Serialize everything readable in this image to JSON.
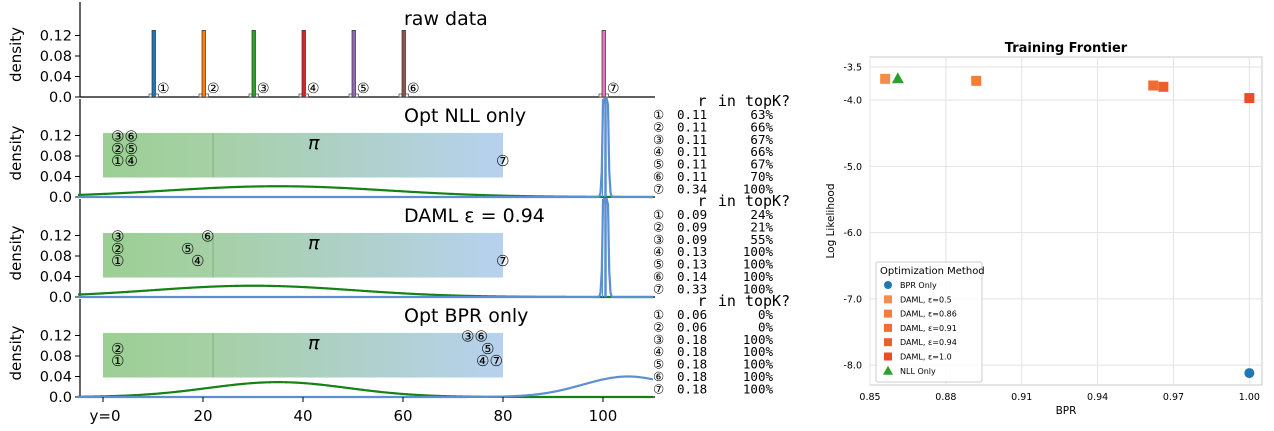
{
  "chart_data": [
    {
      "type": "bar",
      "panel": "raw",
      "title": "raw data",
      "ylabel": "density",
      "yticks": [
        "0.0",
        "0.04",
        "0.08",
        "0.12"
      ],
      "ylim": [
        0,
        0.145
      ],
      "xlim": [
        -5,
        115
      ],
      "categories": [
        "1",
        "2",
        "3",
        "4",
        "5",
        "6",
        "7"
      ],
      "values": [
        0.13,
        0.13,
        0.13,
        0.13,
        0.13,
        0.13,
        0.13
      ],
      "x": [
        10,
        20,
        30,
        40,
        50,
        60,
        100
      ],
      "colors": [
        "#1f77b4",
        "#ff7f0e",
        "#2ca02c",
        "#d62728",
        "#9467bd",
        "#8c564b",
        "#e377c2"
      ],
      "labels": [
        "①",
        "②",
        "③",
        "④",
        "⑤",
        "⑥",
        "⑦"
      ]
    },
    {
      "type": "line",
      "panel": "nll",
      "title": "Opt NLL only",
      "ylabel": "density",
      "yticks": [
        "0.0",
        "0.04",
        "0.08",
        "0.12"
      ],
      "ylim": [
        0,
        0.145
      ],
      "pi_label": "π",
      "pi_box": [
        0,
        80
      ],
      "pi_split": 22,
      "green_peak": {
        "mu": 35,
        "sigma": 22,
        "amp": 0.021
      },
      "blue_peak": {
        "mu": 100.5,
        "sigma": 0.35,
        "amp": 0.5
      },
      "markers": [
        {
          "t": "③⑥",
          "x": 2,
          "y": 0.112
        },
        {
          "t": "②⑤",
          "x": 2,
          "y": 0.088
        },
        {
          "t": "①④",
          "x": 2,
          "y": 0.064
        },
        {
          "t": "⑦",
          "x": 79,
          "y": 0.064
        }
      ],
      "table": {
        "headers": [
          "r",
          "in topK?"
        ],
        "rows": [
          [
            "①",
            "0.11",
            "63%"
          ],
          [
            "②",
            "0.11",
            "66%"
          ],
          [
            "③",
            "0.11",
            "67%"
          ],
          [
            "④",
            "0.11",
            "66%"
          ],
          [
            "⑤",
            "0.11",
            "67%"
          ],
          [
            "⑥",
            "0.11",
            "70%"
          ],
          [
            "⑦",
            "0.34",
            "100%"
          ]
        ]
      }
    },
    {
      "type": "line",
      "panel": "daml",
      "title": "DAML ε = 0.94",
      "ylabel": "density",
      "yticks": [
        "0.0",
        "0.04",
        "0.08",
        "0.12"
      ],
      "ylim": [
        0,
        0.145
      ],
      "pi_label": "π",
      "pi_box": [
        0,
        80
      ],
      "pi_split": 22,
      "green_peak": {
        "mu": 30,
        "sigma": 20,
        "amp": 0.022
      },
      "blue_peak": {
        "mu": 100.5,
        "sigma": 0.35,
        "amp": 0.5
      },
      "markers": [
        {
          "t": "③",
          "x": 2,
          "y": 0.112
        },
        {
          "t": "⑥",
          "x": 20,
          "y": 0.112
        },
        {
          "t": "②",
          "x": 2,
          "y": 0.088
        },
        {
          "t": "⑤",
          "x": 16,
          "y": 0.088
        },
        {
          "t": "①",
          "x": 2,
          "y": 0.064
        },
        {
          "t": "④",
          "x": 18,
          "y": 0.064
        },
        {
          "t": "⑦",
          "x": 79,
          "y": 0.064
        }
      ],
      "table": {
        "headers": [
          "r",
          "in topK?"
        ],
        "rows": [
          [
            "①",
            "0.09",
            "24%"
          ],
          [
            "②",
            "0.09",
            "21%"
          ],
          [
            "③",
            "0.09",
            "55%"
          ],
          [
            "④",
            "0.13",
            "100%"
          ],
          [
            "⑤",
            "0.13",
            "100%"
          ],
          [
            "⑥",
            "0.14",
            "100%"
          ],
          [
            "⑦",
            "0.33",
            "100%"
          ]
        ]
      }
    },
    {
      "type": "line",
      "panel": "bpr",
      "title": "Opt BPR only",
      "ylabel": "density",
      "yticks": [
        "0.0",
        "0.04",
        "0.08",
        "0.12"
      ],
      "xticks": [
        "y=0",
        "20",
        "40",
        "60",
        "80",
        "100"
      ],
      "xtick_values": [
        0,
        20,
        40,
        60,
        80,
        100
      ],
      "ylim": [
        0,
        0.145
      ],
      "pi_label": "π",
      "pi_box": [
        0,
        80
      ],
      "pi_split": 22,
      "green_peak": {
        "mu": 35,
        "sigma": 14,
        "amp": 0.029
      },
      "blue_peak": {
        "mu": 105,
        "sigma": 9,
        "amp": 0.04
      },
      "markers": [
        {
          "t": "③⑥",
          "x": 72,
          "y": 0.112
        },
        {
          "t": "⑤",
          "x": 76,
          "y": 0.088
        },
        {
          "t": "②",
          "x": 2,
          "y": 0.088
        },
        {
          "t": "①",
          "x": 2,
          "y": 0.064
        },
        {
          "t": "④⑦",
          "x": 75,
          "y": 0.064
        }
      ],
      "table": {
        "headers": [
          "r",
          "in topK?"
        ],
        "rows": [
          [
            "①",
            "0.06",
            "0%"
          ],
          [
            "②",
            "0.06",
            "0%"
          ],
          [
            "③",
            "0.18",
            "100%"
          ],
          [
            "④",
            "0.18",
            "100%"
          ],
          [
            "⑤",
            "0.18",
            "100%"
          ],
          [
            "⑥",
            "0.18",
            "100%"
          ],
          [
            "⑦",
            "0.18",
            "100%"
          ]
        ]
      }
    },
    {
      "type": "scatter",
      "panel": "frontier",
      "title": "Training Frontier",
      "xlabel": "BPR",
      "ylabel": "Log Likelihood",
      "xlim": [
        0.85,
        1.005
      ],
      "ylim": [
        -8.3,
        -3.35
      ],
      "xticks": [
        "0.85",
        "0.88",
        "0.91",
        "0.94",
        "0.97",
        "1.00"
      ],
      "xtick_values": [
        0.85,
        0.88,
        0.91,
        0.94,
        0.97,
        1.0
      ],
      "yticks": [
        "-3.5",
        "-4.0",
        "-5.0",
        "-6.0",
        "-7.0",
        "-8.0"
      ],
      "ytick_values": [
        -3.5,
        -4.0,
        -5.0,
        -6.0,
        -7.0,
        -8.0
      ],
      "grid": true,
      "legend_title": "Optimization Method",
      "legend_position": "lower-left",
      "series": [
        {
          "name": "BPR Only",
          "marker": "circle",
          "color": "#1f77b4",
          "points": [
            [
              1.0,
              -8.12
            ]
          ]
        },
        {
          "name": "DAML, ε=0.5",
          "marker": "square",
          "color": "#f48c4a",
          "points": [
            [
              0.856,
              -3.68
            ]
          ]
        },
        {
          "name": "DAML, ε=0.86",
          "marker": "square",
          "color": "#f27d3e",
          "points": [
            [
              0.892,
              -3.71
            ]
          ]
        },
        {
          "name": "DAML, ε=0.91",
          "marker": "square",
          "color": "#ef6c35",
          "points": [
            [
              0.962,
              -3.78
            ]
          ]
        },
        {
          "name": "DAML, ε=0.94",
          "marker": "square",
          "color": "#ec5e2d",
          "points": [
            [
              0.966,
              -3.8
            ]
          ]
        },
        {
          "name": "DAML, ε=1.0",
          "marker": "square",
          "color": "#e94e26",
          "points": [
            [
              1.0,
              -3.97
            ]
          ]
        },
        {
          "name": "NLL Only",
          "marker": "triangle",
          "color": "#2ca02c",
          "points": [
            [
              0.861,
              -3.67
            ]
          ]
        }
      ]
    }
  ]
}
